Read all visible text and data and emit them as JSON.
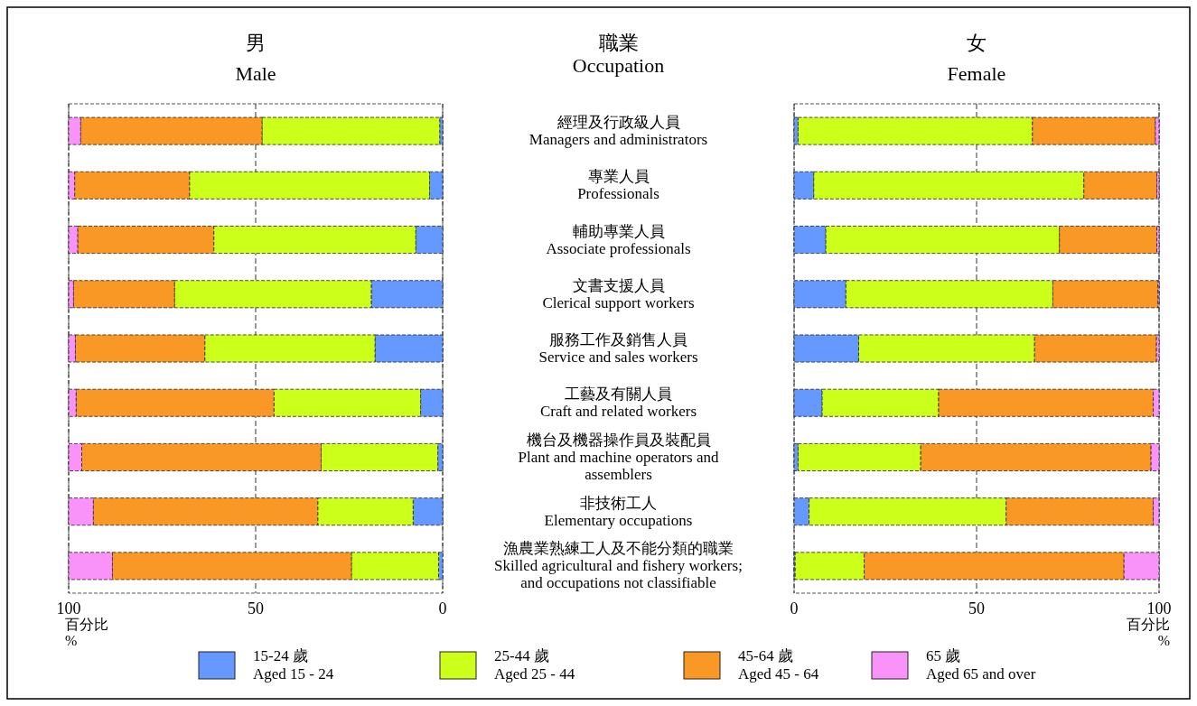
{
  "chart_data": [
    {
      "type": "bar",
      "orientation": "horizontal",
      "stacked": true,
      "title": "男\nMale",
      "ylabel": "職業\nOccupation",
      "xlabel": "百分比\n%",
      "categories": [
        "經理及行政級人員\nManagers and administrators",
        "專業人員\nProfessionals",
        "輔助專業人員\nAssociate professionals",
        "文書支援人員\nClerical support workers",
        "服務工作及銷售人員\nService and sales workers",
        "工藝及有關人員\nCraft and related workers",
        "機台及機器操作員及裝配員\nPlant and machine operators and\nassemblers",
        "非技術工人\nElementary occupations",
        "漁農業熟練工人及不能分類的職業\nSkilled agricultural and fishery workers;\nand occupations not classifiable"
      ],
      "series": [
        {
          "name": "15-24 歲\nAged 15 - 24",
          "color": "#6699ff",
          "values": [
            0.8,
            3.5,
            7.2,
            19.1,
            18.1,
            5.9,
            1.3,
            7.9,
            1.1
          ]
        },
        {
          "name": "25-44 歲\nAged 25 - 44",
          "color": "#ccff1a",
          "values": [
            47.5,
            64.2,
            54.0,
            52.6,
            45.5,
            39.2,
            31.2,
            25.5,
            23.3
          ]
        },
        {
          "name": "45-64 歲\nAged 45 - 64",
          "color": "#f99825",
          "values": [
            48.5,
            30.7,
            36.4,
            27.0,
            34.6,
            52.9,
            64.0,
            60.0,
            63.9
          ]
        },
        {
          "name": "65 歲\nAged 65 and over",
          "color": "#f993f9",
          "values": [
            3.2,
            1.6,
            2.4,
            1.3,
            1.8,
            2.0,
            3.5,
            6.6,
            11.7
          ]
        }
      ],
      "xlim": [
        100,
        0
      ],
      "xticks": [
        100,
        50,
        0
      ],
      "grid": "x",
      "legend": "bottom"
    },
    {
      "type": "bar",
      "orientation": "horizontal",
      "stacked": true,
      "title": "女\nFemale",
      "xlabel": "百分比\n%",
      "categories": [
        null,
        null,
        null,
        null,
        null,
        null,
        null,
        null,
        null
      ],
      "series": [
        {
          "color": "#6699ff",
          "values": [
            1.1,
            5.4,
            8.7,
            14.2,
            17.7,
            7.7,
            1.1,
            4.1,
            0.3
          ]
        },
        {
          "color": "#ccff1a",
          "values": [
            64.2,
            74.0,
            64.0,
            56.7,
            48.2,
            31.9,
            33.6,
            54.0,
            18.9
          ]
        },
        {
          "color": "#f99825",
          "values": [
            33.7,
            20.0,
            26.7,
            28.8,
            33.4,
            58.8,
            63.1,
            40.3,
            71.2
          ]
        },
        {
          "color": "#f993f9",
          "values": [
            1.0,
            0.6,
            0.6,
            0.3,
            0.7,
            1.6,
            2.2,
            1.6,
            9.6
          ]
        }
      ],
      "xlim": [
        0,
        100
      ],
      "xticks": [
        0,
        50,
        100
      ],
      "grid": "x"
    }
  ]
}
